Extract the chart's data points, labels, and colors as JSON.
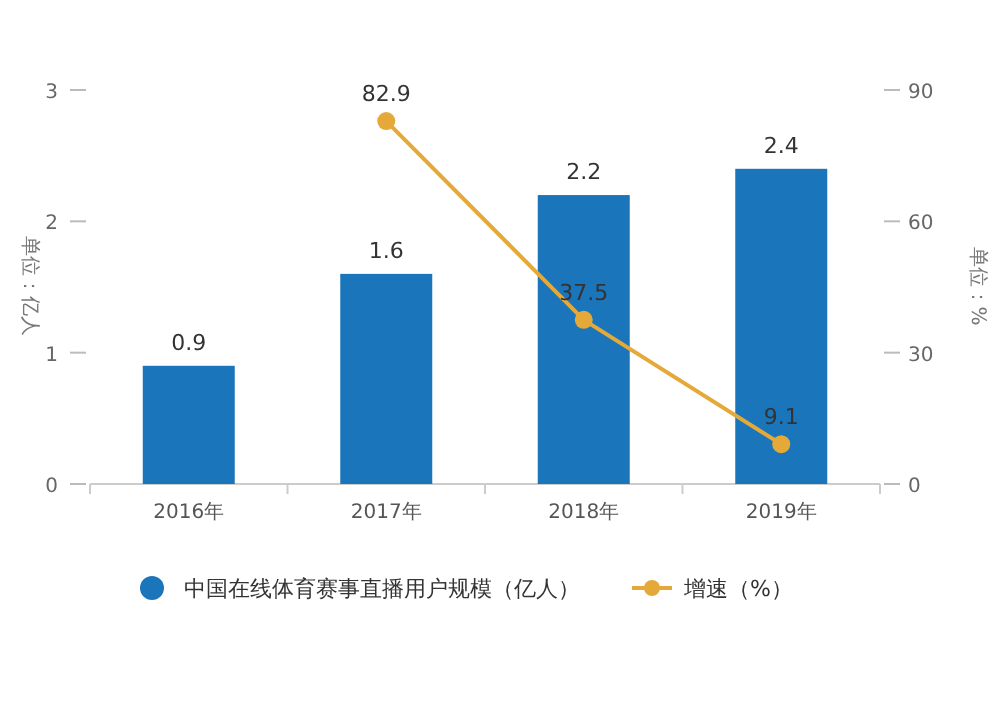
{
  "chart_data": {
    "type": "bar",
    "categories": [
      "2016年",
      "2017年",
      "2018年",
      "2019年"
    ],
    "series": [
      {
        "name": "中国在线体育赛事直播用户规模（亿人）",
        "color": "#1b75bb",
        "values": [
          0.9,
          1.6,
          2.2,
          2.4
        ]
      },
      {
        "name": "增速（%）",
        "type": "line",
        "axis": "y2",
        "color": "#e5a93a",
        "values": [
          null,
          82.9,
          37.5,
          9.1
        ]
      }
    ],
    "ylabel": "单位：亿人",
    "y2label": "单位：%",
    "ylim": [
      0,
      3
    ],
    "yticks": [
      0,
      1,
      2,
      3
    ],
    "y2lim": [
      0,
      90
    ],
    "y2ticks": [
      0,
      30,
      60,
      90
    ],
    "data_labels": true,
    "marker": "circle",
    "legend": "bottom",
    "grid": false
  }
}
